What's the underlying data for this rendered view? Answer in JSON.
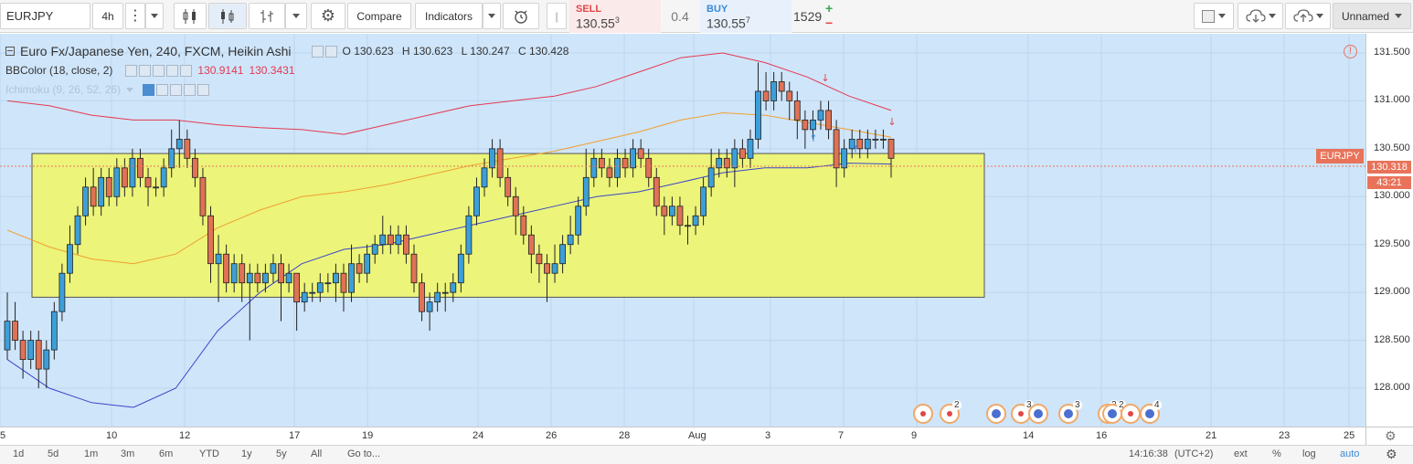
{
  "toolbar": {
    "symbol": "EURJPY",
    "interval": "4h",
    "compare_label": "Compare",
    "indicators_label": "Indicators",
    "layout_name": "Unnamed"
  },
  "trade": {
    "sell_label": "SELL",
    "sell_price_main": "130.55",
    "sell_price_sup": "3",
    "spread": "0.4",
    "buy_label": "BUY",
    "buy_price_main": "130.55",
    "buy_price_sup": "7",
    "quantity": "1529",
    "plus": "+",
    "minus": "−"
  },
  "legend": {
    "title": "Euro Fx/Japanese Yen, 240, FXCM, Heikin Ashi",
    "o_label": "O",
    "o_value": "130.623",
    "h_label": "H",
    "h_value": "130.623",
    "l_label": "L",
    "l_value": "130.247",
    "c_label": "C",
    "c_value": "130.428",
    "bb_name": "BBColor (18, close, 2)",
    "bb_upper": "130.9141",
    "bb_lower": "130.3431",
    "ichimoku_name": "Ichimoku (9, 26, 52, 26)"
  },
  "price_axis": {
    "ticks": [
      "131.500",
      "131.000",
      "130.500",
      "130.000",
      "129.500",
      "129.000",
      "128.500",
      "128.000"
    ],
    "last_price": "130.318",
    "countdown": "43:21",
    "symbol_tag": "EURJPY"
  },
  "time_axis": {
    "ticks": [
      "5",
      "10",
      "12",
      "17",
      "19",
      "24",
      "26",
      "28",
      "Aug",
      "3",
      "7",
      "9",
      "14",
      "16",
      "21",
      "23",
      "25"
    ]
  },
  "events": {
    "counts": [
      "2",
      "3",
      "3",
      "2",
      "2",
      "4"
    ]
  },
  "bottom_bar": {
    "ranges": [
      "1d",
      "5d",
      "1m",
      "3m",
      "6m",
      "YTD",
      "1y",
      "5y",
      "All"
    ],
    "goto": "Go to...",
    "time": "14:16:38",
    "tz": "(UTC+2)",
    "ext": "ext",
    "pct": "%",
    "log": "log",
    "auto": "auto"
  },
  "colors": {
    "chart_bg": "#cfe5fa",
    "up_candle": "#3d9fd9",
    "down_candle": "#e07255",
    "bb_upper": "#e53950",
    "bb_lower": "#3b46c8",
    "bb_basis": "#f0a030",
    "zone_fill": "#ecf47a",
    "accent": "#e8735a"
  },
  "chart_data": {
    "type": "candlestick",
    "symbol": "EURJPY",
    "timeframe": "240",
    "ylim": [
      127.6,
      131.7
    ],
    "zone": {
      "from": "Jul 7",
      "to": "Aug 11",
      "low": 128.95,
      "high": 130.45
    },
    "current_price": 130.318,
    "x_ticks": [
      "5",
      "10",
      "12",
      "17",
      "19",
      "24",
      "26",
      "28",
      "Aug",
      "3",
      "7",
      "9",
      "14",
      "16",
      "21",
      "23",
      "25"
    ],
    "y_ticks": [
      131.5,
      131.0,
      130.5,
      130.0,
      129.5,
      129.0,
      128.5,
      128.0
    ],
    "candles": [
      [
        128.4,
        128.7,
        128.3,
        129.0
      ],
      [
        128.7,
        128.5,
        128.4,
        128.9
      ],
      [
        128.5,
        128.3,
        128.1,
        128.6
      ],
      [
        128.3,
        128.5,
        128.2,
        128.6
      ],
      [
        128.5,
        128.2,
        128.0,
        128.6
      ],
      [
        128.2,
        128.4,
        128.0,
        128.5
      ],
      [
        128.4,
        128.8,
        128.3,
        128.9
      ],
      [
        128.8,
        129.2,
        128.7,
        129.3
      ],
      [
        129.2,
        129.5,
        129.1,
        129.7
      ],
      [
        129.5,
        129.8,
        129.4,
        129.9
      ],
      [
        129.8,
        130.1,
        129.7,
        130.2
      ],
      [
        130.1,
        129.9,
        129.8,
        130.3
      ],
      [
        129.9,
        130.2,
        129.8,
        130.3
      ],
      [
        130.2,
        130.0,
        129.9,
        130.3
      ],
      [
        130.0,
        130.3,
        129.9,
        130.4
      ],
      [
        130.3,
        130.1,
        130.0,
        130.4
      ],
      [
        130.1,
        130.4,
        130.0,
        130.5
      ],
      [
        130.4,
        130.2,
        130.1,
        130.5
      ],
      [
        130.2,
        130.1,
        129.9,
        130.3
      ],
      [
        130.1,
        130.1,
        130.0,
        130.2
      ],
      [
        130.1,
        130.3,
        130.0,
        130.4
      ],
      [
        130.3,
        130.5,
        130.2,
        130.7
      ],
      [
        130.5,
        130.6,
        130.3,
        130.8
      ],
      [
        130.6,
        130.4,
        130.3,
        130.7
      ],
      [
        130.4,
        130.2,
        130.1,
        130.5
      ],
      [
        130.2,
        129.8,
        129.7,
        130.3
      ],
      [
        129.8,
        129.3,
        129.1,
        129.9
      ],
      [
        129.3,
        129.4,
        128.9,
        129.6
      ],
      [
        129.4,
        129.1,
        129.0,
        129.5
      ],
      [
        129.1,
        129.3,
        129.0,
        129.4
      ],
      [
        129.3,
        129.1,
        128.9,
        129.4
      ],
      [
        129.1,
        129.2,
        128.5,
        129.3
      ],
      [
        129.2,
        129.1,
        129.0,
        129.3
      ],
      [
        129.1,
        129.2,
        129.0,
        129.3
      ],
      [
        129.2,
        129.3,
        129.1,
        129.4
      ],
      [
        129.3,
        129.1,
        128.7,
        129.4
      ],
      [
        129.1,
        129.2,
        129.0,
        129.3
      ],
      [
        129.2,
        128.9,
        128.6,
        129.2
      ],
      [
        128.9,
        129.0,
        128.8,
        129.1
      ],
      [
        129.0,
        129.0,
        128.9,
        129.1
      ],
      [
        129.0,
        129.1,
        128.9,
        129.2
      ],
      [
        129.1,
        129.1,
        129.0,
        129.2
      ],
      [
        129.1,
        129.2,
        128.9,
        129.3
      ],
      [
        129.2,
        129.0,
        128.8,
        129.3
      ],
      [
        129.0,
        129.3,
        128.9,
        129.5
      ],
      [
        129.3,
        129.2,
        129.1,
        129.4
      ],
      [
        129.2,
        129.4,
        129.1,
        129.5
      ],
      [
        129.4,
        129.5,
        129.3,
        129.6
      ],
      [
        129.5,
        129.6,
        129.4,
        129.8
      ],
      [
        129.6,
        129.5,
        129.4,
        129.7
      ],
      [
        129.5,
        129.6,
        129.4,
        129.7
      ],
      [
        129.6,
        129.4,
        129.3,
        129.7
      ],
      [
        129.4,
        129.1,
        129.0,
        129.5
      ],
      [
        129.1,
        128.8,
        128.7,
        129.2
      ],
      [
        128.8,
        128.9,
        128.6,
        129.0
      ],
      [
        128.9,
        129.0,
        128.8,
        129.1
      ],
      [
        129.0,
        129.0,
        128.8,
        129.1
      ],
      [
        129.0,
        129.1,
        128.9,
        129.2
      ],
      [
        129.1,
        129.4,
        129.0,
        129.5
      ],
      [
        129.4,
        129.8,
        129.3,
        129.9
      ],
      [
        129.8,
        130.1,
        129.7,
        130.2
      ],
      [
        130.1,
        130.3,
        130.0,
        130.4
      ],
      [
        130.3,
        130.5,
        130.2,
        130.6
      ],
      [
        130.5,
        130.2,
        130.1,
        130.6
      ],
      [
        130.2,
        130.0,
        129.9,
        130.3
      ],
      [
        130.0,
        129.8,
        129.6,
        130.1
      ],
      [
        129.8,
        129.6,
        129.5,
        129.9
      ],
      [
        129.6,
        129.4,
        129.2,
        129.7
      ],
      [
        129.4,
        129.3,
        129.1,
        129.5
      ],
      [
        129.3,
        129.2,
        128.9,
        129.4
      ],
      [
        129.2,
        129.3,
        129.1,
        129.5
      ],
      [
        129.3,
        129.5,
        129.2,
        129.6
      ],
      [
        129.5,
        129.6,
        129.4,
        129.8
      ],
      [
        129.6,
        129.9,
        129.5,
        130.0
      ],
      [
        129.9,
        130.2,
        129.8,
        130.5
      ],
      [
        130.2,
        130.4,
        130.1,
        130.5
      ],
      [
        130.4,
        130.3,
        130.2,
        130.5
      ],
      [
        130.3,
        130.2,
        130.1,
        130.4
      ],
      [
        130.2,
        130.4,
        130.1,
        130.5
      ],
      [
        130.4,
        130.3,
        130.2,
        130.5
      ],
      [
        130.3,
        130.5,
        130.2,
        130.6
      ],
      [
        130.5,
        130.4,
        130.3,
        130.6
      ],
      [
        130.4,
        130.2,
        130.1,
        130.5
      ],
      [
        130.2,
        129.9,
        129.8,
        130.3
      ],
      [
        129.9,
        129.8,
        129.6,
        130.0
      ],
      [
        129.8,
        129.9,
        129.7,
        130.0
      ],
      [
        129.9,
        129.7,
        129.6,
        130.0
      ],
      [
        129.7,
        129.7,
        129.5,
        129.8
      ],
      [
        129.7,
        129.8,
        129.6,
        129.9
      ],
      [
        129.8,
        130.1,
        129.7,
        130.2
      ],
      [
        130.1,
        130.3,
        130.0,
        130.5
      ],
      [
        130.3,
        130.4,
        130.2,
        130.5
      ],
      [
        130.4,
        130.3,
        130.2,
        130.5
      ],
      [
        130.3,
        130.5,
        130.1,
        130.6
      ],
      [
        130.5,
        130.4,
        130.3,
        130.6
      ],
      [
        130.4,
        130.6,
        130.3,
        130.7
      ],
      [
        130.6,
        131.1,
        130.5,
        131.4
      ],
      [
        131.1,
        131.0,
        130.9,
        131.3
      ],
      [
        131.0,
        131.2,
        130.9,
        131.3
      ],
      [
        131.2,
        131.1,
        131.0,
        131.3
      ],
      [
        131.1,
        131.0,
        130.8,
        131.2
      ],
      [
        131.0,
        130.8,
        130.6,
        131.1
      ],
      [
        130.8,
        130.7,
        130.5,
        130.9
      ],
      [
        130.7,
        130.8,
        130.6,
        130.9
      ],
      [
        130.8,
        130.9,
        130.7,
        131.0
      ],
      [
        130.9,
        130.7,
        130.6,
        131.0
      ],
      [
        130.7,
        130.3,
        130.1,
        130.8
      ],
      [
        130.3,
        130.5,
        130.2,
        130.6
      ],
      [
        130.5,
        130.6,
        130.4,
        130.7
      ],
      [
        130.6,
        130.5,
        130.4,
        130.7
      ],
      [
        130.5,
        130.6,
        130.4,
        130.7
      ],
      [
        130.6,
        130.6,
        130.5,
        130.7
      ],
      [
        130.6,
        130.6,
        130.5,
        130.7
      ],
      [
        130.6,
        130.4,
        130.2,
        130.6
      ]
    ],
    "bb_upper": [
      131.0,
      130.95,
      130.85,
      130.8,
      130.8,
      130.75,
      130.72,
      130.7,
      130.65,
      130.75,
      130.85,
      130.95,
      131.0,
      131.05,
      131.15,
      131.3,
      131.45,
      131.5,
      131.4,
      131.25,
      131.05,
      130.9
    ],
    "bb_lower": [
      128.3,
      128.0,
      127.85,
      127.8,
      128.0,
      128.6,
      129.0,
      129.3,
      129.45,
      129.5,
      129.6,
      129.7,
      129.8,
      129.9,
      130.0,
      130.05,
      130.15,
      130.25,
      130.3,
      130.3,
      130.35,
      130.34
    ]
  }
}
